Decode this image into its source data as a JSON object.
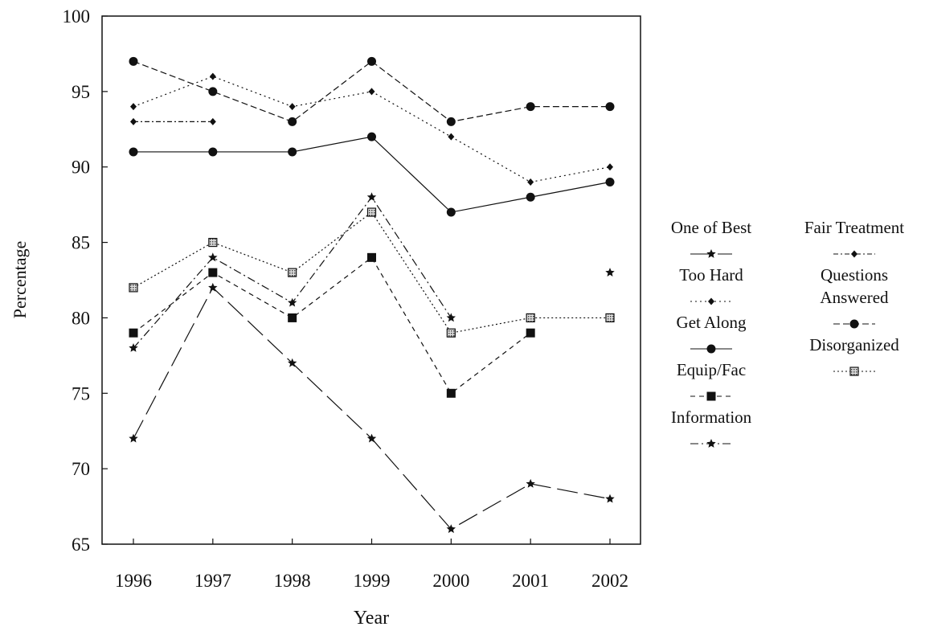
{
  "chart_data": {
    "type": "line",
    "x_label": "Year",
    "y_label": "Percentage",
    "categories": [
      "1996",
      "1997",
      "1998",
      "1999",
      "2000",
      "2001",
      "2002"
    ],
    "ylim": [
      65,
      100
    ],
    "yticks": [
      65,
      70,
      75,
      80,
      85,
      90,
      95,
      100
    ],
    "series": [
      {
        "name": "One of Best",
        "color": "#111111",
        "marker": "star",
        "dash": "26 8",
        "values": [
          72,
          82,
          77,
          72,
          66,
          69,
          68
        ]
      },
      {
        "name": "Too Hard",
        "color": "#111111",
        "marker": "diamond",
        "dash": "2 4",
        "values": [
          94,
          96,
          94,
          95,
          92,
          89,
          90
        ]
      },
      {
        "name": "Get Along",
        "color": "#111111",
        "marker": "circle",
        "dash": "none",
        "values": [
          91,
          91,
          91,
          92,
          87,
          88,
          89
        ]
      },
      {
        "name": "Equip/Fac",
        "color": "#111111",
        "marker": "square",
        "dash": "6 5",
        "values": [
          79,
          83,
          80,
          84,
          75,
          79,
          null
        ]
      },
      {
        "name": "Information",
        "color": "#111111",
        "marker": "star",
        "dash": "10 4 2 4",
        "values": [
          78,
          84,
          81,
          88,
          80,
          null,
          83
        ]
      },
      {
        "name": "Fair Treatment",
        "color": "#111111",
        "marker": "diamond",
        "dash": "6 3 2 3",
        "values": [
          93,
          93,
          null,
          null,
          null,
          null,
          null
        ]
      },
      {
        "name": "Questions Answered",
        "color": "#111111",
        "marker": "circle",
        "dash": "8 4",
        "values": [
          97,
          95,
          93,
          97,
          93,
          94,
          94
        ]
      },
      {
        "name": "Disorganized",
        "color": "#111111",
        "marker": "checkered-square",
        "dash": "2 3",
        "values": [
          82,
          85,
          83,
          87,
          79,
          80,
          80
        ]
      }
    ]
  }
}
